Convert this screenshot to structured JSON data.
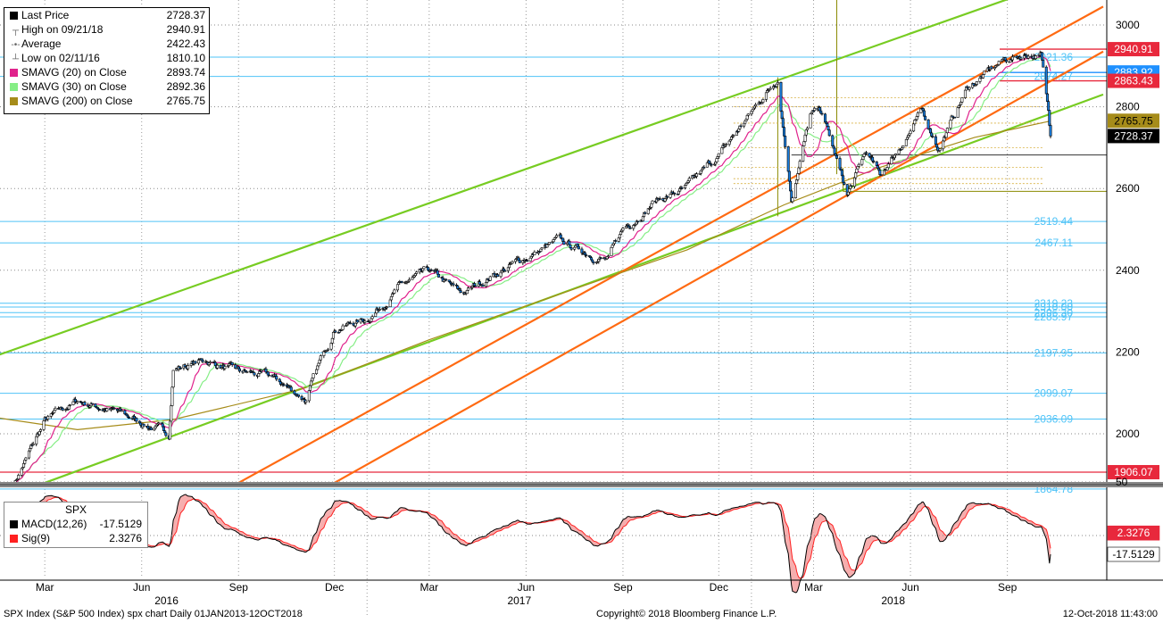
{
  "footer": {
    "left": "SPX Index (S&P 500 Index) spx chart  Daily 01JAN2013-12OCT2018",
    "center": "Copyright© 2018 Bloomberg Finance L.P.",
    "right": "12-Oct-2018 11:43:00"
  },
  "legend": [
    {
      "label": "Last Price",
      "value": "2728.37",
      "color": "#000000",
      "symbol": "swatch"
    },
    {
      "label": "High on 09/21/18",
      "value": "2940.91",
      "color": "#666666",
      "symbol": "high"
    },
    {
      "label": "Average",
      "value": "2422.43",
      "color": "#666666",
      "symbol": "avg"
    },
    {
      "label": "Low on 02/11/16",
      "value": "1810.10",
      "color": "#666666",
      "symbol": "low"
    },
    {
      "label": "SMAVG (20)  on Close",
      "value": "2893.74",
      "color": "#e0228c",
      "symbol": "swatch"
    },
    {
      "label": "SMAVG (30)  on Close",
      "value": "2892.36",
      "color": "#86ee86",
      "symbol": "swatch"
    },
    {
      "label": "SMAVG (200)  on Close",
      "value": "2765.75",
      "color": "#a68c1a",
      "symbol": "swatch"
    }
  ],
  "macd_legend": {
    "title": "SPX",
    "items": [
      {
        "label": "MACD(12,26)",
        "value": "-17.5129",
        "color": "#000000"
      },
      {
        "label": "Sig(9)",
        "value": "2.3276",
        "color": "#ff2020"
      }
    ]
  },
  "chart_data": [
    {
      "type": "candlestick",
      "title": "SPX Index (S&P 500 Index)",
      "ylim": [
        1870,
        3060
      ],
      "yticks": [
        2000,
        2200,
        2400,
        2600,
        2800,
        3000
      ],
      "x_month_labels": [
        "Mar",
        "Jun",
        "Sep",
        "Dec",
        "Mar",
        "Jun",
        "Sep",
        "Dec",
        "Mar",
        "Jun",
        "Sep"
      ],
      "x_year_labels": [
        "2016",
        "2017",
        "2018"
      ],
      "anchors": [
        {
          "date": "2016-02",
          "price": 1880
        },
        {
          "date": "2016-03",
          "price": 2030
        },
        {
          "date": "2016-04",
          "price": 2080
        },
        {
          "date": "2016-05",
          "price": 2060
        },
        {
          "date": "2016-06-27",
          "price": 2000
        },
        {
          "date": "2016-07",
          "price": 2160
        },
        {
          "date": "2016-08",
          "price": 2180
        },
        {
          "date": "2016-09",
          "price": 2150
        },
        {
          "date": "2016-10",
          "price": 2140
        },
        {
          "date": "2016-11-04",
          "price": 2085
        },
        {
          "date": "2016-11-20",
          "price": 2190
        },
        {
          "date": "2016-12",
          "price": 2260
        },
        {
          "date": "2017-01",
          "price": 2280
        },
        {
          "date": "2017-02",
          "price": 2360
        },
        {
          "date": "2017-03-01",
          "price": 2395
        },
        {
          "date": "2017-04",
          "price": 2340
        },
        {
          "date": "2017-05",
          "price": 2390
        },
        {
          "date": "2017-06",
          "price": 2430
        },
        {
          "date": "2017-07",
          "price": 2470
        },
        {
          "date": "2017-08-18",
          "price": 2425
        },
        {
          "date": "2017-09",
          "price": 2500
        },
        {
          "date": "2017-10",
          "price": 2570
        },
        {
          "date": "2017-11",
          "price": 2600
        },
        {
          "date": "2017-12",
          "price": 2680
        },
        {
          "date": "2018-01-26",
          "price": 2872
        },
        {
          "date": "2018-02-08",
          "price": 2581
        },
        {
          "date": "2018-02-26",
          "price": 2780
        },
        {
          "date": "2018-03-09",
          "price": 2786
        },
        {
          "date": "2018-04-02",
          "price": 2582
        },
        {
          "date": "2018-04-20",
          "price": 2690
        },
        {
          "date": "2018-05-03",
          "price": 2629
        },
        {
          "date": "2018-06-12",
          "price": 2785
        },
        {
          "date": "2018-06-28",
          "price": 2700
        },
        {
          "date": "2018-07-25",
          "price": 2846
        },
        {
          "date": "2018-08-29",
          "price": 2914
        },
        {
          "date": "2018-09-21",
          "price": 2930
        },
        {
          "date": "2018-10-03",
          "price": 2925
        },
        {
          "date": "2018-10-10",
          "price": 2785
        },
        {
          "date": "2018-10-12",
          "price": 2728
        }
      ],
      "series": [
        {
          "name": "Last Price",
          "color": "#000000"
        },
        {
          "name": "SMAVG (20)  on Close",
          "color": "#e0228c"
        },
        {
          "name": "SMAVG (30)  on Close",
          "color": "#86ee86"
        },
        {
          "name": "SMAVG (200)  on Close",
          "color": "#a68c1a"
        }
      ],
      "sma200_anchors": [
        {
          "date": "2016-01",
          "price": 2045
        },
        {
          "date": "2016-04",
          "price": 2010
        },
        {
          "date": "2016-07",
          "price": 2035
        },
        {
          "date": "2016-11",
          "price": 2110
        },
        {
          "date": "2017-03",
          "price": 2230
        },
        {
          "date": "2017-07",
          "price": 2340
        },
        {
          "date": "2017-11",
          "price": 2450
        },
        {
          "date": "2018-02",
          "price": 2560
        },
        {
          "date": "2018-05",
          "price": 2650
        },
        {
          "date": "2018-08",
          "price": 2725
        },
        {
          "date": "2018-10-12",
          "price": 2765
        }
      ],
      "horizontal_levels": [
        {
          "label": "2921.36",
          "value": 2921.36,
          "color": "#4fc3f7"
        },
        {
          "label": "2874.27",
          "value": 2874.27,
          "color": "#4fc3f7"
        },
        {
          "label": "2519.44",
          "value": 2519.44,
          "color": "#4fc3f7"
        },
        {
          "label": "2467.11",
          "value": 2467.11,
          "color": "#4fc3f7"
        },
        {
          "label": "2319.23",
          "value": 2319.23,
          "color": "#4fc3f7"
        },
        {
          "label": "2310.00",
          "value": 2310.0,
          "color": "#4fc3f7"
        },
        {
          "label": "2296.30",
          "value": 2296.3,
          "color": "#4fc3f7"
        },
        {
          "label": "2285.97",
          "value": 2285.97,
          "color": "#4fc3f7"
        },
        {
          "label": "2197.95",
          "value": 2197.95,
          "color": "#4fc3f7"
        },
        {
          "label": "2099.07",
          "value": 2099.07,
          "color": "#4fc3f7"
        },
        {
          "label": "2036.09",
          "value": 2036.09,
          "color": "#4fc3f7"
        },
        {
          "label": "1864.78",
          "value": 1864.78,
          "color": "#4fc3f7"
        }
      ],
      "price_tags": [
        {
          "label": "2940.91",
          "value": 2940.91,
          "color": "#e8283c"
        },
        {
          "label": "2883.92",
          "value": 2883.92,
          "color": "#1e90ff"
        },
        {
          "label": "2863.43",
          "value": 2863.43,
          "color": "#e8283c"
        },
        {
          "label": "2765.75",
          "value": 2765.75,
          "color": "#a68c1a"
        },
        {
          "label": "2728.37",
          "value": 2728.37,
          "color": "#000000"
        },
        {
          "label": "1906.07",
          "value": 1906.07,
          "color": "#e8283c"
        }
      ],
      "trend_channels": [
        {
          "color": "#77cc22",
          "from": {
            "date": "2015-12",
            "price": 2150
          },
          "to": {
            "date": "2018-10",
            "price": 3090
          }
        },
        {
          "color": "#77cc22",
          "from": {
            "date": "2016-03",
            "price": 1880
          },
          "to": {
            "date": "2018-12",
            "price": 2830
          }
        },
        {
          "color": "#ff6a12",
          "from": {
            "date": "2016-09",
            "price": 1880
          },
          "to": {
            "date": "2018-12",
            "price": 3045
          }
        },
        {
          "color": "#ff6a12",
          "from": {
            "date": "2016-12",
            "price": 1880
          },
          "to": {
            "date": "2018-12",
            "price": 2935
          }
        }
      ]
    },
    {
      "type": "line",
      "title": "SPX",
      "ylim": [
        -65,
        60
      ],
      "yticks": [
        50
      ],
      "series": [
        {
          "name": "MACD(12,26)",
          "color": "#000000",
          "last": -17.5129
        },
        {
          "name": "Sig(9)",
          "color": "#ff2020",
          "last": 2.3276
        }
      ]
    }
  ]
}
